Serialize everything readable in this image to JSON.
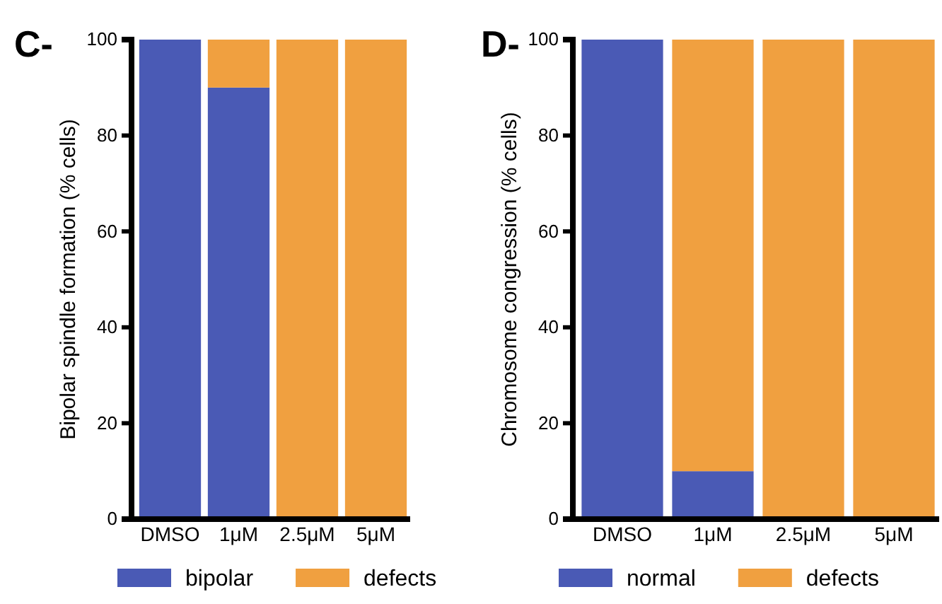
{
  "chart_data": [
    {
      "type": "bar",
      "title": "C-",
      "ylabel": "Bipolar spindle formation (% cells)",
      "categories": [
        "DMSO",
        "1μM",
        "2.5μM",
        "5μM"
      ],
      "stacked": true,
      "ylim": [
        0,
        100
      ],
      "yticks": [
        0,
        20,
        40,
        60,
        80,
        100
      ],
      "legend": "bottom",
      "grid": false,
      "series": [
        {
          "name": "bipolar",
          "color": "#4a5ab5",
          "values": [
            100,
            90,
            0,
            0
          ]
        },
        {
          "name": "defects",
          "color": "#f0a040",
          "values": [
            0,
            10,
            100,
            100
          ]
        }
      ]
    },
    {
      "type": "bar",
      "title": "D-",
      "ylabel": "Chromosome congression (% cells)",
      "categories": [
        "DMSO",
        "1μM",
        "2.5μM",
        "5μM"
      ],
      "stacked": true,
      "ylim": [
        0,
        100
      ],
      "yticks": [
        0,
        20,
        40,
        60,
        80,
        100
      ],
      "legend": "bottom",
      "grid": false,
      "series": [
        {
          "name": "normal",
          "color": "#4a5ab5",
          "values": [
            100,
            10,
            0,
            0
          ]
        },
        {
          "name": "defects",
          "color": "#f0a040",
          "values": [
            0,
            90,
            100,
            100
          ]
        }
      ]
    }
  ]
}
